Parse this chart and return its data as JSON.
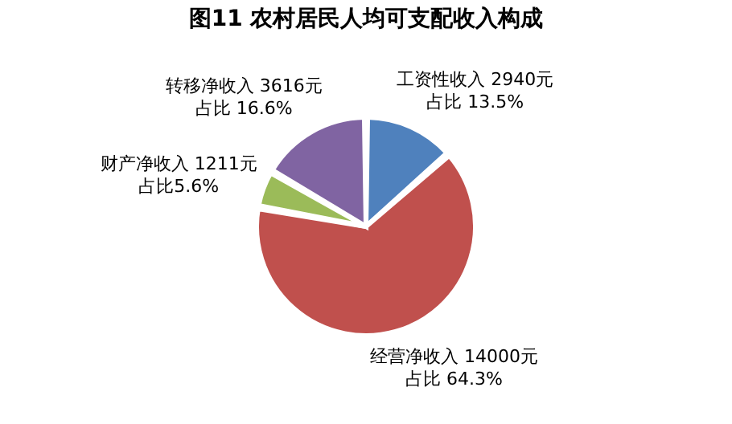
{
  "chart_data": {
    "type": "pie",
    "title": "图11   农村居民人均可支配收入构成",
    "categories": [
      "工资性收入",
      "经营净收入",
      "财产净收入",
      "转移净收入"
    ],
    "values": [
      2940,
      14000,
      1211,
      3616
    ],
    "colors": [
      "#4f81bd",
      "#c0504d",
      "#9bbb59",
      "#8064a2"
    ],
    "value_labels": [
      "2940元",
      "14000元",
      "1211元",
      "3616元"
    ],
    "annotations": [
      "占比 13.5%",
      "占比 64.3%",
      "占比5.6%",
      "占比 16.6%"
    ],
    "legend": false
  }
}
